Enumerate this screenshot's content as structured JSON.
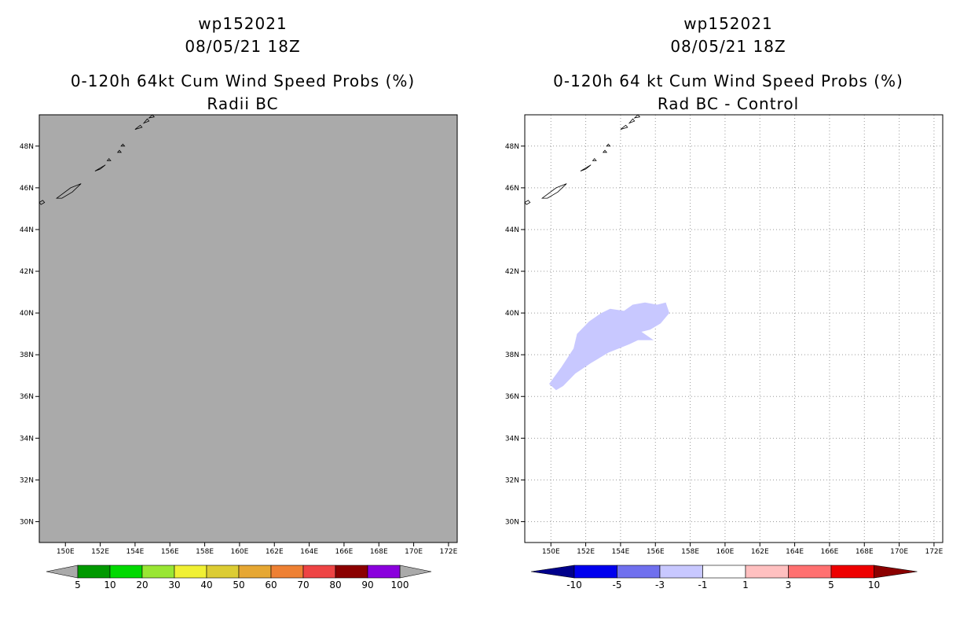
{
  "panels": [
    {
      "id": "left",
      "titles": [
        "wp152021",
        "08/05/21 18Z",
        "0-120h 64kt Cum Wind Speed Probs (%)",
        "Radii BC"
      ],
      "map_background": "#aaaaaa",
      "grid": false,
      "colorbar": {
        "colors": [
          "#009900",
          "#00d900",
          "#99e633",
          "#f0f033",
          "#dccc33",
          "#e6a733",
          "#ee8033",
          "#ee4444",
          "#8b0000",
          "#8a00dd"
        ],
        "labels": [
          "5",
          "10",
          "20",
          "30",
          "40",
          "50",
          "60",
          "70",
          "80",
          "90",
          "100"
        ],
        "arrow_color": "#aaaaaa"
      }
    },
    {
      "id": "right",
      "titles": [
        "wp152021",
        "08/05/21 18Z",
        "0-120h 64 kt Cum Wind Speed Probs (%)",
        "Rad BC - Control"
      ],
      "map_background": "#ffffff",
      "grid": true,
      "shaded_region": {
        "color": "#c8c8ff",
        "value_bin": "-3 to -1",
        "outline_lon_lat": [
          [
            149.9,
            36.6
          ],
          [
            150.6,
            37.4
          ],
          [
            151.3,
            38.3
          ],
          [
            151.5,
            39.0
          ],
          [
            152.2,
            39.6
          ],
          [
            152.9,
            40.0
          ],
          [
            153.4,
            40.2
          ],
          [
            154.2,
            40.1
          ],
          [
            154.7,
            40.4
          ],
          [
            155.4,
            40.5
          ],
          [
            156.1,
            40.4
          ],
          [
            156.6,
            40.5
          ],
          [
            156.8,
            40.0
          ],
          [
            156.3,
            39.5
          ],
          [
            155.7,
            39.2
          ],
          [
            155.2,
            39.1
          ],
          [
            155.9,
            38.7
          ],
          [
            155.0,
            38.7
          ],
          [
            154.5,
            38.5
          ],
          [
            153.3,
            38.1
          ],
          [
            152.3,
            37.6
          ],
          [
            151.4,
            37.1
          ],
          [
            150.7,
            36.5
          ],
          [
            150.3,
            36.3
          ]
        ]
      },
      "colorbar": {
        "colors": [
          "#0000ee",
          "#7070ee",
          "#c8c8ff",
          "#ffffff",
          "#ffc0c0",
          "#ff7070",
          "#ee0000"
        ],
        "labels": [
          "-10",
          "-5",
          "-3",
          "-1",
          "1",
          "3",
          "5",
          "10"
        ],
        "arrow_left_color": "#00008b",
        "arrow_right_color": "#8b0000"
      }
    }
  ],
  "map": {
    "lon_range": [
      148.5,
      172.5
    ],
    "lat_range": [
      29,
      49.5
    ],
    "lon_ticks": [
      "150E",
      "152E",
      "154E",
      "156E",
      "158E",
      "160E",
      "162E",
      "164E",
      "166E",
      "168E",
      "170E",
      "172E"
    ],
    "lat_ticks": [
      "30N",
      "32N",
      "34N",
      "36N",
      "38N",
      "40N",
      "42N",
      "44N",
      "46N",
      "48N"
    ]
  }
}
